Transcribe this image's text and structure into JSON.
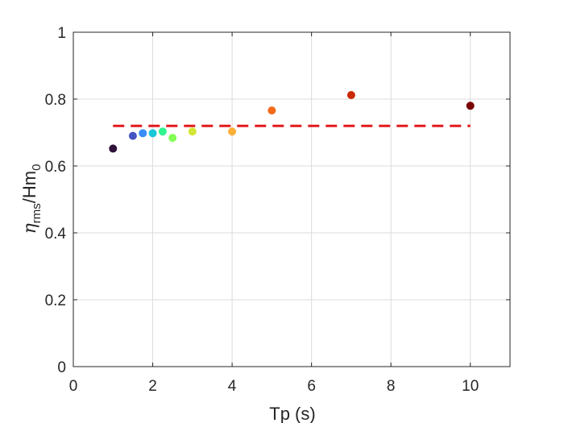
{
  "chart_data": {
    "type": "scatter",
    "xlabel": "Tp (s)",
    "ylabel": {
      "symbol": "η",
      "symbol_sub": "rms",
      "rest": "/Hm",
      "rest_sub": "0"
    },
    "xlim": [
      0,
      11
    ],
    "ylim": [
      0,
      1
    ],
    "xticks": [
      0,
      2,
      4,
      6,
      8,
      10
    ],
    "yticks": [
      0,
      0.2,
      0.4,
      0.6,
      0.8,
      1
    ],
    "xtick_labels": [
      "0",
      "2",
      "4",
      "6",
      "8",
      "10"
    ],
    "ytick_labels": [
      "0",
      "0.2",
      "0.4",
      "0.6",
      "0.8",
      "1"
    ],
    "grid": true,
    "points": [
      {
        "x": 1.0,
        "y": 0.652,
        "color": "#30123b"
      },
      {
        "x": 1.5,
        "y": 0.69,
        "color": "#4454c4"
      },
      {
        "x": 1.75,
        "y": 0.698,
        "color": "#3a8cf8"
      },
      {
        "x": 2.0,
        "y": 0.698,
        "color": "#1ac7d9"
      },
      {
        "x": 2.25,
        "y": 0.703,
        "color": "#2ff58e"
      },
      {
        "x": 2.5,
        "y": 0.684,
        "color": "#81ff54"
      },
      {
        "x": 3.0,
        "y": 0.703,
        "color": "#d3e635"
      },
      {
        "x": 4.0,
        "y": 0.703,
        "color": "#fcae36"
      },
      {
        "x": 5.0,
        "y": 0.766,
        "color": "#f36a1a"
      },
      {
        "x": 7.0,
        "y": 0.812,
        "color": "#cb2a04"
      },
      {
        "x": 10.0,
        "y": 0.78,
        "color": "#7a0403"
      }
    ],
    "reference_line": {
      "x": [
        1,
        10
      ],
      "y": 0.72,
      "style": "dashed",
      "color": "#e31a1c"
    }
  }
}
